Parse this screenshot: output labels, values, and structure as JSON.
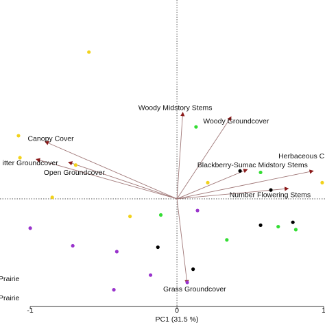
{
  "chart_data": {
    "type": "biplot",
    "x_label": "PC1 (31.5 %)",
    "xlim": [
      -1.206,
      1.009
    ],
    "ylim": [
      -0.734,
      1.355
    ],
    "xticks": [
      -1,
      0,
      1
    ],
    "series": [
      {
        "color": "#f2d21b",
        "x": [
          -0.6,
          -1.08,
          -1.07,
          -0.69,
          -0.85,
          -0.32,
          0.21,
          0.99
        ],
        "y": [
          1.0,
          0.43,
          0.28,
          0.23,
          0.01,
          -0.12,
          0.11,
          0.11
        ]
      },
      {
        "color": "#33dd33",
        "x": [
          0.13,
          0.57,
          0.69,
          0.81,
          0.34,
          -0.11
        ],
        "y": [
          0.49,
          0.18,
          -0.19,
          -0.21,
          -0.28,
          -0.11
        ]
      },
      {
        "color": "#000000",
        "x": [
          0.43,
          0.64,
          0.57,
          0.79,
          -0.13,
          0.11
        ],
        "y": [
          0.19,
          0.06,
          -0.18,
          -0.16,
          -0.33,
          -0.48
        ]
      },
      {
        "color": "#9933cc",
        "x": [
          0.14,
          -1.0,
          -0.71,
          -0.41,
          -0.18,
          -0.43,
          0.07
        ],
        "y": [
          -0.08,
          -0.2,
          -0.32,
          -0.36,
          -0.52,
          -0.62,
          -0.57
        ]
      }
    ],
    "loadings_color": "#8b1a1a",
    "loadings": [
      {
        "name": "Canopy Cover",
        "x": -0.9,
        "y": 0.39
      },
      {
        "name": "itter Groundcover",
        "x": -0.96,
        "y": 0.27
      },
      {
        "name": "Open Groundcover",
        "x": -0.74,
        "y": 0.25
      },
      {
        "name": "Woody Midstory Stems",
        "x": 0.04,
        "y": 0.59
      },
      {
        "name": "Woody Groundcover",
        "x": 0.37,
        "y": 0.56
      },
      {
        "name": "Blackberry-Sumac Midstory Stems",
        "x": 0.48,
        "y": 0.2
      },
      {
        "name": "Herbaceous C",
        "x": 0.93,
        "y": 0.19
      },
      {
        "name": "Number Flowering Stems",
        "x": 0.76,
        "y": 0.07
      },
      {
        "name": "Grass Groundcover",
        "x": 0.07,
        "y": -0.58
      }
    ],
    "legend_labels": [
      "Prairie",
      "Prairie"
    ]
  }
}
